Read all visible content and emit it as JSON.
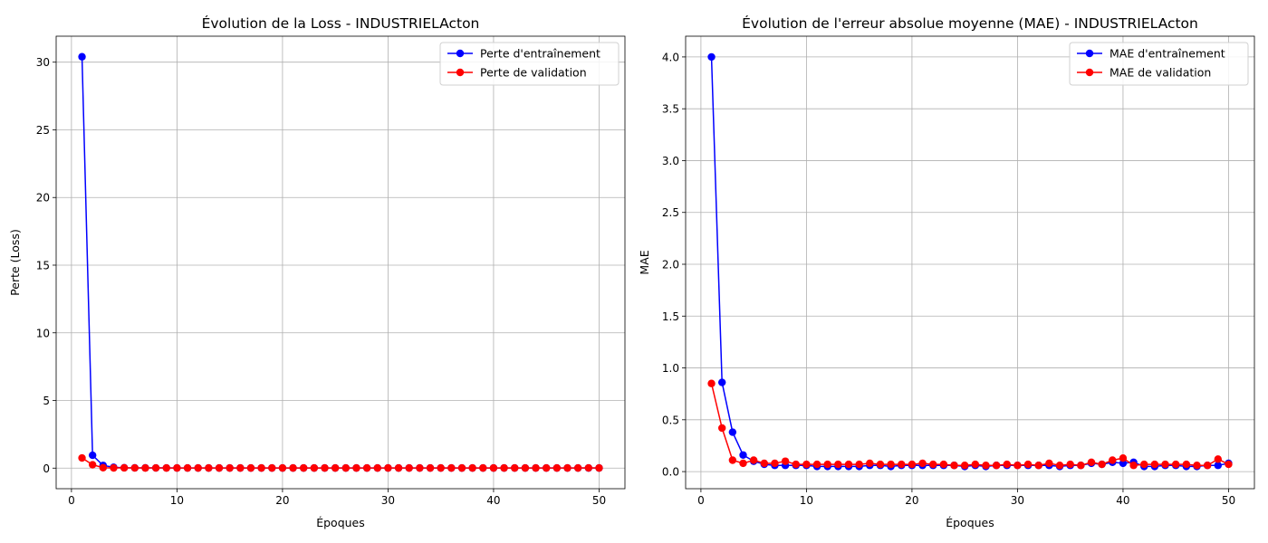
{
  "chart_data": [
    {
      "type": "line",
      "title": "Évolution de la Loss - INDUSTRIELActon",
      "xlabel": "Époques",
      "ylabel": "Perte (Loss)",
      "xlim": [
        -1.45,
        52.45
      ],
      "ylim": [
        -1.52,
        31.92
      ],
      "xticks": [
        0,
        10,
        20,
        30,
        40,
        50
      ],
      "yticks": [
        0,
        5,
        10,
        15,
        20,
        25,
        30
      ],
      "grid": true,
      "legend": "top-right",
      "x": [
        1,
        2,
        3,
        4,
        5,
        6,
        7,
        8,
        9,
        10,
        11,
        12,
        13,
        14,
        15,
        16,
        17,
        18,
        19,
        20,
        21,
        22,
        23,
        24,
        25,
        26,
        27,
        28,
        29,
        30,
        31,
        32,
        33,
        34,
        35,
        36,
        37,
        38,
        39,
        40,
        41,
        42,
        43,
        44,
        45,
        46,
        47,
        48,
        49,
        50
      ],
      "series": [
        {
          "name": "Perte d'entraînement",
          "color": "#0000ff",
          "values": [
            30.4,
            0.95,
            0.2,
            0.06,
            0.03,
            0.02,
            0.02,
            0.015,
            0.015,
            0.012,
            0.012,
            0.01,
            0.01,
            0.01,
            0.01,
            0.01,
            0.01,
            0.01,
            0.01,
            0.01,
            0.01,
            0.01,
            0.01,
            0.01,
            0.01,
            0.01,
            0.01,
            0.01,
            0.01,
            0.01,
            0.01,
            0.01,
            0.01,
            0.01,
            0.01,
            0.01,
            0.01,
            0.01,
            0.01,
            0.01,
            0.01,
            0.01,
            0.01,
            0.01,
            0.01,
            0.01,
            0.01,
            0.01,
            0.01,
            0.01
          ]
        },
        {
          "name": "Perte de validation",
          "color": "#ff0000",
          "values": [
            0.75,
            0.25,
            0.03,
            0.015,
            0.02,
            0.015,
            0.01,
            0.015,
            0.01,
            0.01,
            0.01,
            0.01,
            0.01,
            0.01,
            0.01,
            0.01,
            0.01,
            0.01,
            0.01,
            0.01,
            0.01,
            0.01,
            0.01,
            0.01,
            0.01,
            0.01,
            0.01,
            0.01,
            0.01,
            0.01,
            0.01,
            0.01,
            0.01,
            0.01,
            0.01,
            0.01,
            0.01,
            0.01,
            0.01,
            0.01,
            0.01,
            0.01,
            0.01,
            0.01,
            0.01,
            0.01,
            0.01,
            0.01,
            0.015,
            0.01
          ]
        }
      ]
    },
    {
      "type": "line",
      "title": "Évolution de l'erreur absolue moyenne (MAE) - INDUSTRIELActon",
      "xlabel": "Époques",
      "ylabel": "MAE",
      "xlim": [
        -1.45,
        52.45
      ],
      "ylim": [
        -0.165,
        4.2
      ],
      "xticks": [
        0,
        10,
        20,
        30,
        40,
        50
      ],
      "yticks": [
        0.0,
        0.5,
        1.0,
        1.5,
        2.0,
        2.5,
        3.0,
        3.5,
        4.0
      ],
      "ytick_labels": [
        "0.0",
        "0.5",
        "1.0",
        "1.5",
        "2.0",
        "2.5",
        "3.0",
        "3.5",
        "4.0"
      ],
      "grid": true,
      "legend": "top-right",
      "x": [
        1,
        2,
        3,
        4,
        5,
        6,
        7,
        8,
        9,
        10,
        11,
        12,
        13,
        14,
        15,
        16,
        17,
        18,
        19,
        20,
        21,
        22,
        23,
        24,
        25,
        26,
        27,
        28,
        29,
        30,
        31,
        32,
        33,
        34,
        35,
        36,
        37,
        38,
        39,
        40,
        41,
        42,
        43,
        44,
        45,
        46,
        47,
        48,
        49,
        50
      ],
      "series": [
        {
          "name": "MAE d'entraînement",
          "color": "#0000ff",
          "values": [
            4.0,
            0.86,
            0.38,
            0.16,
            0.1,
            0.07,
            0.06,
            0.06,
            0.06,
            0.06,
            0.05,
            0.05,
            0.05,
            0.05,
            0.05,
            0.06,
            0.06,
            0.05,
            0.06,
            0.06,
            0.06,
            0.06,
            0.06,
            0.06,
            0.05,
            0.06,
            0.05,
            0.06,
            0.06,
            0.06,
            0.06,
            0.06,
            0.06,
            0.05,
            0.06,
            0.06,
            0.08,
            0.07,
            0.09,
            0.08,
            0.09,
            0.05,
            0.05,
            0.06,
            0.06,
            0.05,
            0.05,
            0.06,
            0.06,
            0.08
          ]
        },
        {
          "name": "MAE de validation",
          "color": "#ff0000",
          "values": [
            0.85,
            0.42,
            0.11,
            0.08,
            0.11,
            0.08,
            0.08,
            0.1,
            0.07,
            0.07,
            0.07,
            0.07,
            0.07,
            0.07,
            0.07,
            0.08,
            0.07,
            0.07,
            0.07,
            0.07,
            0.08,
            0.07,
            0.07,
            0.06,
            0.06,
            0.07,
            0.06,
            0.06,
            0.07,
            0.06,
            0.07,
            0.06,
            0.08,
            0.06,
            0.07,
            0.06,
            0.09,
            0.07,
            0.11,
            0.13,
            0.06,
            0.07,
            0.07,
            0.07,
            0.07,
            0.07,
            0.06,
            0.06,
            0.12,
            0.07
          ]
        }
      ]
    }
  ]
}
